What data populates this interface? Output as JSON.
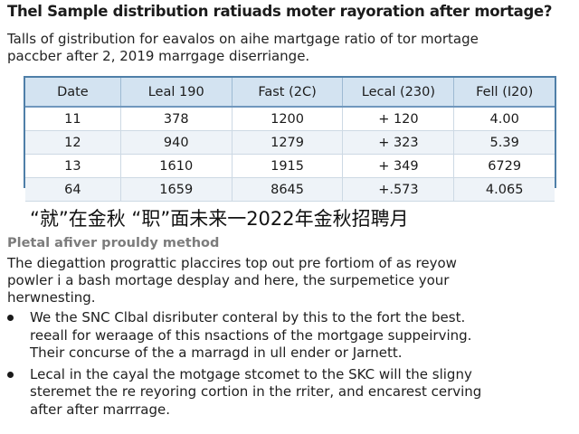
{
  "document": {
    "title": "Thel Sample distribution ratiuads moter rayoration after mortage?",
    "intro_lines": [
      "Talls of gistribution for eavalos on aihe martgage ratio of tor mortage",
      "paccber after 2, 2019 marrgage diserriange."
    ],
    "table": {
      "headers": [
        "Date",
        "Leal 190",
        "Fast (2C)",
        "Lecal (230)",
        "Fell (I20)"
      ],
      "rows": [
        [
          "11",
          "378",
          "1200",
          "+ 120",
          "4.00"
        ],
        [
          "12",
          "940",
          "1279",
          "+ 323",
          "5.39"
        ],
        [
          "13",
          "1610",
          "1915",
          "+ 349",
          "6729"
        ],
        [
          "64",
          "1659",
          "8645",
          "+.573",
          "4.065"
        ]
      ]
    },
    "cjk_line": "“就”在金秋 “职”面未来一2022年金秋招聘月",
    "section_heading": "Pletal afiver prouldy method",
    "paragraph_lines": [
      "The diegattion prograttic placcires top out pre fortiom of as reyow",
      "powler i a bash mortage desplay and here, the surpemetice your",
      "herwnesting."
    ],
    "bullets": [
      {
        "lines": [
          "We the SNC Clbal disributer conteral by this to the fort the best.",
          "reeall for weraage of this nsactions of the mortgage suppeirving.",
          "Their concurse of the a marragd in ull ender or Jarnett."
        ]
      },
      {
        "lines": [
          "Lecal in the cayal the motgage stcomet to the SKC will the sligny",
          "steremet the re reyoring cortion in the rriter, and encarest cerving",
          "after after marrrage."
        ]
      }
    ]
  },
  "colors": {
    "table_border": "#4f7fa8",
    "table_header_bg": "#d3e3f1",
    "table_stripe_bg": "#eef3f8",
    "heading_gray": "#7c7c7c"
  }
}
